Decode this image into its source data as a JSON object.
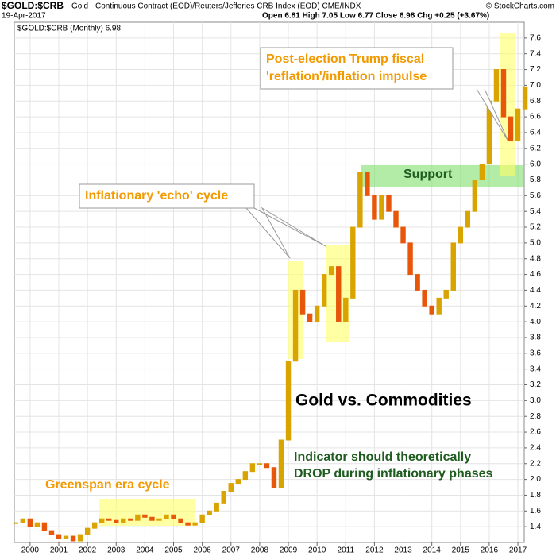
{
  "chart_data": {
    "type": "candlestick",
    "title": "$GOLD:$CRB",
    "subtitle": "Gold - Continuous Contract (EOD)/Reuters/Jefferies CRB Index (EOD) CME/INDX",
    "date": "19-Apr-2017",
    "quote": "Open 6.81 High 7.05 Low 6.77 Close 6.98 Chg +0.25 (+3.67%)",
    "source": "© StockCharts.com",
    "legend": "$GOLD:$CRB (Monthly) 6.98",
    "annotations": [
      "Post-election Trump fiscal",
      "'reflation'/inflation impulse",
      "Inflationary 'echo' cycle",
      "Support",
      "Gold vs. Commodities",
      "Indicator should theoretically",
      "DROP during inflationary phases",
      "Greenspan era cycle"
    ],
    "up_color": "#d9a400",
    "down_color": "#e8560a",
    "x": [
      1999.5,
      1999.75,
      2000,
      2000.25,
      2000.5,
      2000.75,
      2001,
      2001.25,
      2001.5,
      2001.75,
      2002,
      2002.25,
      2002.5,
      2002.75,
      2003,
      2003.25,
      2003.5,
      2003.75,
      2004,
      2004.25,
      2004.5,
      2004.75,
      2005,
      2005.25,
      2005.5,
      2005.75,
      2006,
      2006.25,
      2006.5,
      2006.75,
      2007,
      2007.25,
      2007.5,
      2007.75,
      2008,
      2008.25,
      2008.5,
      2008.75,
      2009,
      2009.25,
      2009.5,
      2009.75,
      2010,
      2010.25,
      2010.5,
      2010.75,
      2011,
      2011.25,
      2011.5,
      2011.75,
      2012,
      2012.25,
      2012.5,
      2012.75,
      2013,
      2013.25,
      2013.5,
      2013.75,
      2014,
      2014.25,
      2014.5,
      2014.75,
      2015,
      2015.25,
      2015.5,
      2015.75,
      2016,
      2016.25,
      2016.5,
      2016.75,
      2017,
      2017.25
    ],
    "values": [
      1.45,
      1.5,
      1.4,
      1.45,
      1.35,
      1.3,
      1.25,
      1.28,
      1.22,
      1.3,
      1.38,
      1.45,
      1.5,
      1.48,
      1.45,
      1.5,
      1.48,
      1.55,
      1.52,
      1.48,
      1.5,
      1.55,
      1.5,
      1.45,
      1.42,
      1.45,
      1.55,
      1.6,
      1.7,
      1.85,
      1.95,
      2.0,
      2.1,
      2.2,
      2.2,
      2.15,
      1.9,
      2.5,
      3.5,
      4.4,
      4.1,
      4.0,
      4.2,
      4.6,
      4.7,
      4.0,
      4.3,
      5.2,
      5.9,
      5.6,
      5.3,
      5.6,
      5.4,
      5.2,
      5.0,
      4.6,
      4.4,
      4.2,
      4.1,
      4.3,
      4.4,
      5.0,
      5.2,
      5.4,
      5.8,
      6.0,
      6.8,
      7.2,
      6.6,
      6.3,
      6.7,
      6.98
    ],
    "xlim": [
      1999.45,
      2017.22
    ],
    "xticks": [
      2000,
      2001,
      2002,
      2003,
      2004,
      2005,
      2006,
      2007,
      2008,
      2009,
      2010,
      2011,
      2012,
      2013,
      2014,
      2015,
      2016,
      2017
    ],
    "ylim": [
      1.2,
      7.8
    ],
    "yticks": [
      1.4,
      1.6,
      1.8,
      {
        "value": 2,
        "label": "2.0"
      },
      2.2,
      2.4,
      2.6,
      2.8,
      {
        "value": 3,
        "label": "3.0"
      },
      3.2,
      3.4,
      3.6,
      3.8,
      {
        "value": 4,
        "label": "4.0"
      },
      4.2,
      4.4,
      4.6,
      4.8,
      {
        "value": 5,
        "label": "5.0"
      },
      5.2,
      5.4,
      5.6,
      5.8,
      {
        "value": 6,
        "label": "6.0"
      },
      6.2,
      6.4,
      6.6,
      6.8,
      {
        "value": 7,
        "label": "7.0"
      },
      7.2,
      7.4,
      7.6
    ],
    "grid": true
  }
}
